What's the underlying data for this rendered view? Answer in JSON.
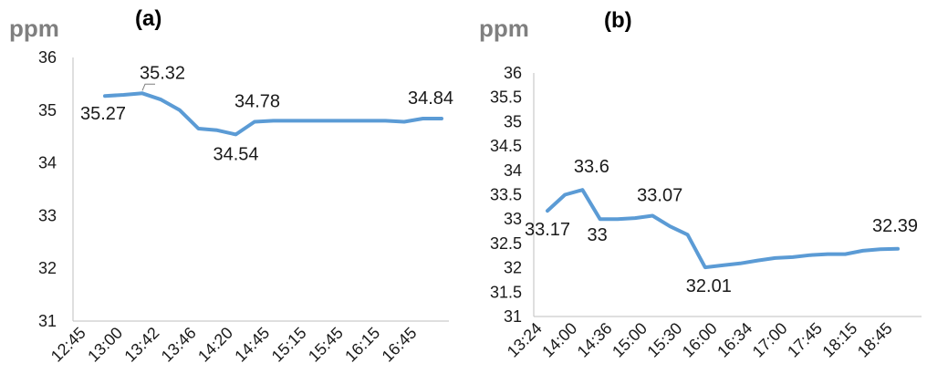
{
  "chart_data": [
    {
      "type": "line",
      "title": "(a)",
      "ylabel": "ppm",
      "ylim": [
        31,
        36
      ],
      "yticks": [
        "31",
        "32",
        "33",
        "34",
        "35",
        "36"
      ],
      "categories": [
        "12:45",
        "13:00",
        "13:42",
        "13:46",
        "14:20",
        "14:45",
        "15:15",
        "15:45",
        "16:15",
        "16:45"
      ],
      "x": [
        1,
        2,
        3,
        4,
        5,
        6,
        7,
        8,
        9,
        10,
        11,
        12,
        13,
        14,
        15,
        16,
        17,
        18,
        19
      ],
      "values": [
        35.27,
        35.29,
        35.32,
        35.2,
        35.0,
        34.65,
        34.62,
        34.54,
        34.78,
        34.8,
        34.8,
        34.8,
        34.8,
        34.8,
        34.8,
        34.8,
        34.78,
        34.84,
        34.84
      ],
      "data_labels": [
        {
          "index": 0,
          "text": "35.27"
        },
        {
          "index": 2,
          "text": "35.32"
        },
        {
          "index": 7,
          "text": "34.54"
        },
        {
          "index": 8,
          "text": "34.78"
        },
        {
          "index": 18,
          "text": "34.84"
        }
      ],
      "color": "#5b9bd5",
      "grid": false
    },
    {
      "type": "line",
      "title": "(b)",
      "ylabel": "ppm",
      "ylim": [
        31,
        36
      ],
      "yticks": [
        "31",
        "31.5",
        "32",
        "32.5",
        "33",
        "33.5",
        "34",
        "34.5",
        "35",
        "35.5",
        "36"
      ],
      "categories": [
        "13:24",
        "14:00",
        "14:36",
        "15:00",
        "15:30",
        "16:00",
        "16:34",
        "17:00",
        "17:45",
        "18:15",
        "18:45"
      ],
      "x": [
        1,
        2,
        3,
        4,
        5,
        6,
        7,
        8,
        9,
        10,
        11,
        12,
        13,
        14,
        15,
        16,
        17,
        18,
        19,
        20,
        21
      ],
      "values": [
        33.17,
        33.5,
        33.6,
        33.0,
        33.0,
        33.02,
        33.07,
        32.85,
        32.68,
        32.01,
        32.05,
        32.09,
        32.15,
        32.2,
        32.22,
        32.26,
        32.28,
        32.28,
        32.35,
        32.38,
        32.39
      ],
      "data_labels": [
        {
          "index": 0,
          "text": "33.17"
        },
        {
          "index": 2,
          "text": "33.6"
        },
        {
          "index": 3,
          "text": "33"
        },
        {
          "index": 6,
          "text": "33.07"
        },
        {
          "index": 9,
          "text": "32.01"
        },
        {
          "index": 20,
          "text": "32.39"
        }
      ],
      "color": "#5b9bd5",
      "grid": false
    }
  ]
}
